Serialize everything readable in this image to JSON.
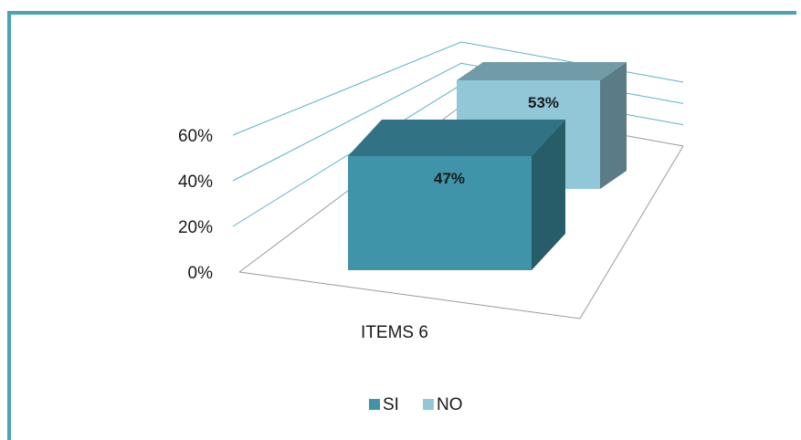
{
  "chart_data": {
    "type": "bar",
    "style": "3d-clustered",
    "categories": [
      "ITEMS 6"
    ],
    "series": [
      {
        "name": "SI",
        "values": [
          47
        ],
        "label": "47%",
        "color": "#3f94aa"
      },
      {
        "name": "NO",
        "values": [
          53
        ],
        "label": "53%",
        "color": "#92c7d8"
      }
    ],
    "ylim": [
      0,
      60
    ],
    "yticks": [
      {
        "value": 0,
        "label": "0%"
      },
      {
        "value": 20,
        "label": "20%"
      },
      {
        "value": 40,
        "label": "40%"
      },
      {
        "value": 60,
        "label": "60%"
      }
    ],
    "grid": true,
    "legend": "bottom",
    "colors": {
      "frame": "#4ba3b8",
      "gridline": "#5bb3c6",
      "floor": "#9a9a9a"
    }
  }
}
